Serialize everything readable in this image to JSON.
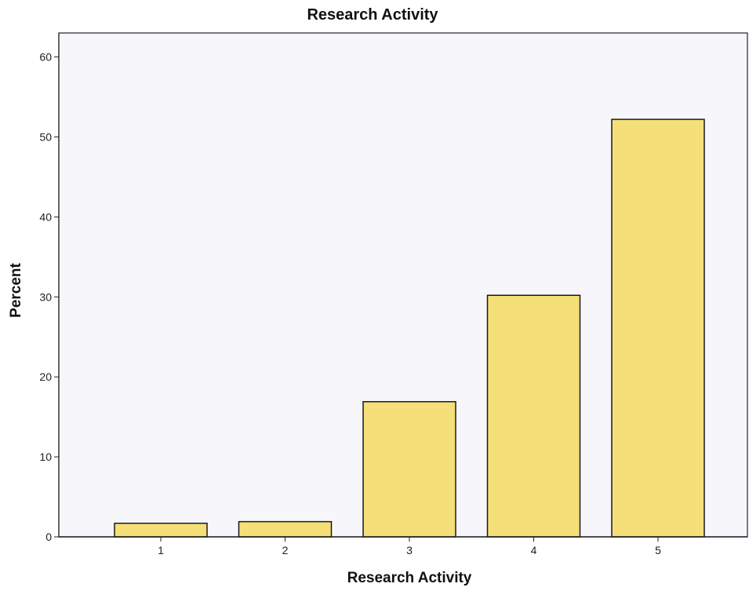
{
  "chart_data": {
    "type": "bar",
    "title": "Research Activity",
    "xlabel": "Research Activity",
    "ylabel": "Percent",
    "categories": [
      "1",
      "2",
      "3",
      "4",
      "5"
    ],
    "values": [
      1.7,
      1.9,
      16.9,
      30.2,
      52.2
    ],
    "ylim": [
      0,
      63
    ],
    "yticks": [
      0,
      10,
      20,
      30,
      40,
      50,
      60
    ],
    "grid": false,
    "legend": "none",
    "colors": {
      "bar_fill": "#F5DF78",
      "bar_stroke": "#1a1a1a",
      "plot_background": "#F7F6FB",
      "axis": "#222222"
    }
  }
}
